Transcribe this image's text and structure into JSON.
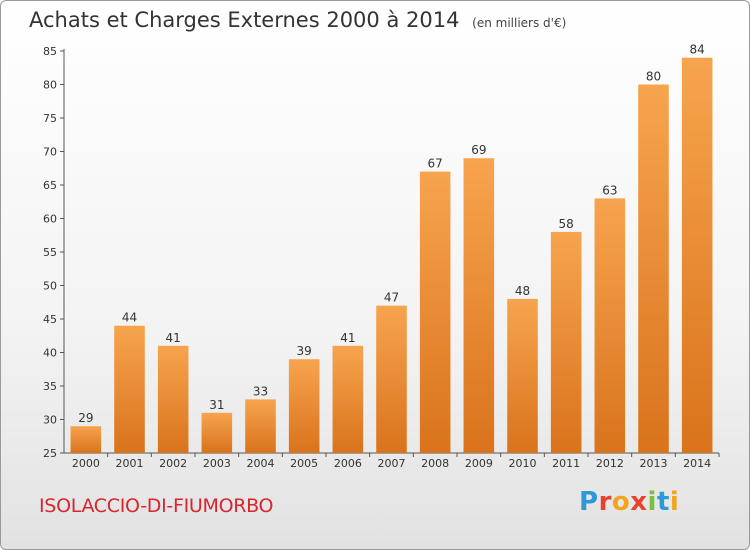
{
  "header": {
    "title": "Achats et Charges Externes 2000 à 2014",
    "subtitle": "(en milliers d'€)"
  },
  "footer": {
    "commune": "ISOLACCIO-DI-FIUMORBO",
    "logo_letters": [
      {
        "ch": "P",
        "color": "#2b9ad6"
      },
      {
        "ch": "r",
        "color": "#e8412f"
      },
      {
        "ch": "o",
        "color": "#f2a51c"
      },
      {
        "ch": "x",
        "color": "#e8412f"
      },
      {
        "ch": "i",
        "color": "#7bbf3a"
      },
      {
        "ch": "t",
        "color": "#2b9ad6"
      },
      {
        "ch": "i",
        "color": "#f2a51c"
      }
    ]
  },
  "chart_data": {
    "type": "bar",
    "categories": [
      "2000",
      "2001",
      "2002",
      "2003",
      "2004",
      "2005",
      "2006",
      "2007",
      "2008",
      "2009",
      "2010",
      "2011",
      "2012",
      "2013",
      "2014"
    ],
    "values": [
      29,
      44,
      41,
      31,
      33,
      39,
      41,
      47,
      67,
      69,
      48,
      58,
      63,
      80,
      84
    ],
    "ylim": [
      25,
      85
    ],
    "yticks": [
      25,
      30,
      35,
      40,
      45,
      50,
      55,
      60,
      65,
      70,
      75,
      80,
      85
    ],
    "grid": false,
    "bar_color_top": "#f7a44e",
    "bar_color_bottom": "#d9731c",
    "data_labels": true
  }
}
